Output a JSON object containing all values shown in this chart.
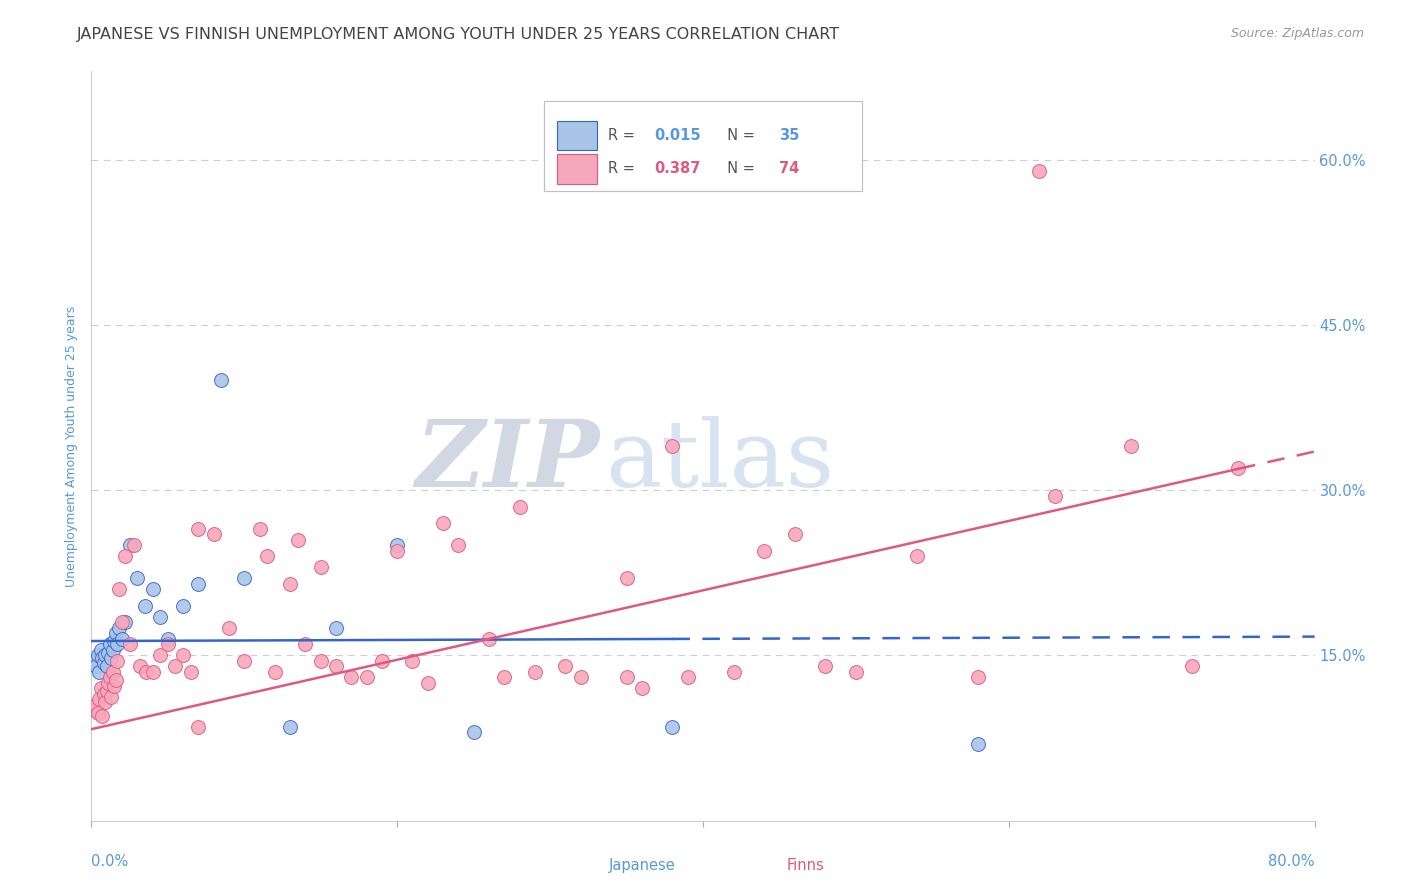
{
  "title": "JAPANESE VS FINNISH UNEMPLOYMENT AMONG YOUTH UNDER 25 YEARS CORRELATION CHART",
  "source": "Source: ZipAtlas.com",
  "ylabel": "Unemployment Among Youth under 25 years",
  "ytick_values": [
    0.15,
    0.3,
    0.45,
    0.6
  ],
  "ytick_labels": [
    "15.0%",
    "30.0%",
    "45.0%",
    "60.0%"
  ],
  "xlim": [
    0.0,
    0.8
  ],
  "ylim": [
    0.0,
    0.68
  ],
  "japanese_color": "#aac4e8",
  "finns_color": "#f5a8bc",
  "japanese_line_color": "#3366cc",
  "finns_line_color": "#e05880",
  "watermark_zip": "ZIP",
  "watermark_atlas": "atlas",
  "watermark_color_zip": "#c0cce8",
  "watermark_color_atlas": "#c8d8f0",
  "background_color": "#ffffff",
  "title_color": "#444444",
  "axis_label_color": "#5599dd",
  "tick_label_color": "#5599dd",
  "grid_color": "#ccccdd",
  "title_fontsize": 11.5,
  "source_fontsize": 9,
  "axis_label_fontsize": 9,
  "tick_label_fontsize": 10.5,
  "marker_size": 100,
  "line_width": 1.8,
  "japanese_line_start_y": 0.163,
  "japanese_line_end_y": 0.167,
  "japanese_line_solid_end_x": 0.38,
  "finns_line_start_y": 0.083,
  "finns_line_end_y": 0.335,
  "finns_line_solid_end_x": 0.75,
  "japanese_x": [
    0.002,
    0.003,
    0.004,
    0.005,
    0.006,
    0.007,
    0.008,
    0.009,
    0.01,
    0.011,
    0.012,
    0.013,
    0.014,
    0.015,
    0.016,
    0.017,
    0.018,
    0.02,
    0.022,
    0.025,
    0.03,
    0.035,
    0.04,
    0.045,
    0.05,
    0.06,
    0.07,
    0.085,
    0.1,
    0.13,
    0.16,
    0.2,
    0.25,
    0.38,
    0.58
  ],
  "japanese_y": [
    0.145,
    0.14,
    0.15,
    0.135,
    0.155,
    0.148,
    0.143,
    0.15,
    0.14,
    0.152,
    0.16,
    0.148,
    0.155,
    0.163,
    0.17,
    0.16,
    0.175,
    0.165,
    0.18,
    0.25,
    0.22,
    0.195,
    0.21,
    0.185,
    0.165,
    0.195,
    0.215,
    0.4,
    0.22,
    0.085,
    0.175,
    0.25,
    0.08,
    0.085,
    0.07
  ],
  "finns_x": [
    0.002,
    0.003,
    0.004,
    0.005,
    0.006,
    0.007,
    0.008,
    0.009,
    0.01,
    0.011,
    0.012,
    0.013,
    0.014,
    0.015,
    0.016,
    0.017,
    0.018,
    0.02,
    0.022,
    0.025,
    0.028,
    0.032,
    0.036,
    0.04,
    0.045,
    0.05,
    0.055,
    0.06,
    0.065,
    0.07,
    0.08,
    0.09,
    0.1,
    0.11,
    0.12,
    0.13,
    0.14,
    0.15,
    0.16,
    0.18,
    0.2,
    0.22,
    0.24,
    0.26,
    0.29,
    0.32,
    0.35,
    0.38,
    0.42,
    0.46,
    0.5,
    0.54,
    0.58,
    0.63,
    0.68,
    0.72,
    0.75,
    0.35,
    0.48,
    0.36,
    0.28,
    0.31,
    0.44,
    0.39,
    0.15,
    0.19,
    0.23,
    0.27,
    0.17,
    0.21,
    0.115,
    0.135,
    0.62,
    0.07
  ],
  "finns_y": [
    0.1,
    0.105,
    0.098,
    0.11,
    0.12,
    0.095,
    0.115,
    0.108,
    0.118,
    0.125,
    0.13,
    0.112,
    0.135,
    0.122,
    0.128,
    0.145,
    0.21,
    0.18,
    0.24,
    0.16,
    0.25,
    0.14,
    0.135,
    0.135,
    0.15,
    0.16,
    0.14,
    0.15,
    0.135,
    0.265,
    0.26,
    0.175,
    0.145,
    0.265,
    0.135,
    0.215,
    0.16,
    0.23,
    0.14,
    0.13,
    0.245,
    0.125,
    0.25,
    0.165,
    0.135,
    0.13,
    0.22,
    0.34,
    0.135,
    0.26,
    0.135,
    0.24,
    0.13,
    0.295,
    0.34,
    0.14,
    0.32,
    0.13,
    0.14,
    0.12,
    0.285,
    0.14,
    0.245,
    0.13,
    0.145,
    0.145,
    0.27,
    0.13,
    0.13,
    0.145,
    0.24,
    0.255,
    0.59,
    0.085
  ]
}
